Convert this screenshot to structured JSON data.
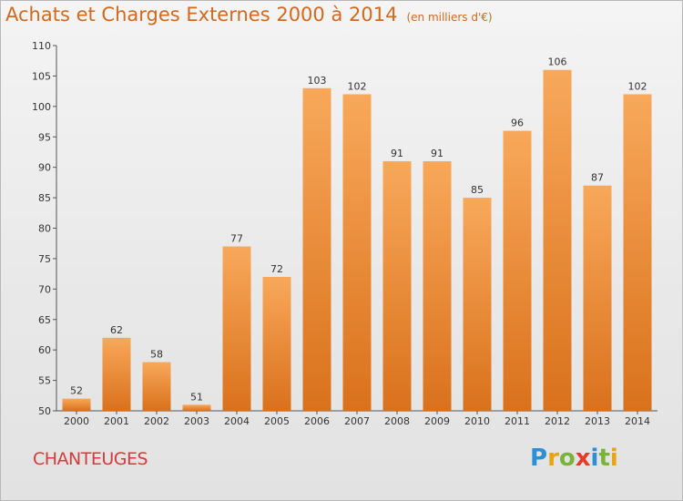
{
  "header": {
    "title": "Achats et Charges Externes 2000 à 2014",
    "unit": "(en milliers d'€)"
  },
  "footer": {
    "commune": "CHANTEUGES",
    "logo": "Proxiti"
  },
  "colors": {
    "bar_light": "#f8a85a",
    "bar_dark": "#d9711c",
    "title": "#d2691e",
    "commune": "#d23c3c",
    "logo_letters": [
      "#2e8fd6",
      "#e8a317",
      "#7bb33a",
      "#e23b2a",
      "#2e8fd6",
      "#7bb33a",
      "#e8a317"
    ]
  },
  "chart_data": {
    "type": "bar",
    "title": "Achats et Charges Externes 2000 à 2014",
    "subtitle": "(en milliers d'€)",
    "xlabel": "",
    "ylabel": "",
    "categories": [
      "2000",
      "2001",
      "2002",
      "2003",
      "2004",
      "2005",
      "2006",
      "2007",
      "2008",
      "2009",
      "2010",
      "2011",
      "2012",
      "2013",
      "2014"
    ],
    "values": [
      52,
      62,
      58,
      51,
      77,
      72,
      103,
      102,
      91,
      91,
      85,
      96,
      106,
      87,
      102
    ],
    "ylim": [
      50,
      110
    ],
    "yticks": [
      50,
      55,
      60,
      65,
      70,
      75,
      80,
      85,
      90,
      95,
      100,
      105,
      110
    ],
    "grid": "none",
    "legend": "none"
  }
}
